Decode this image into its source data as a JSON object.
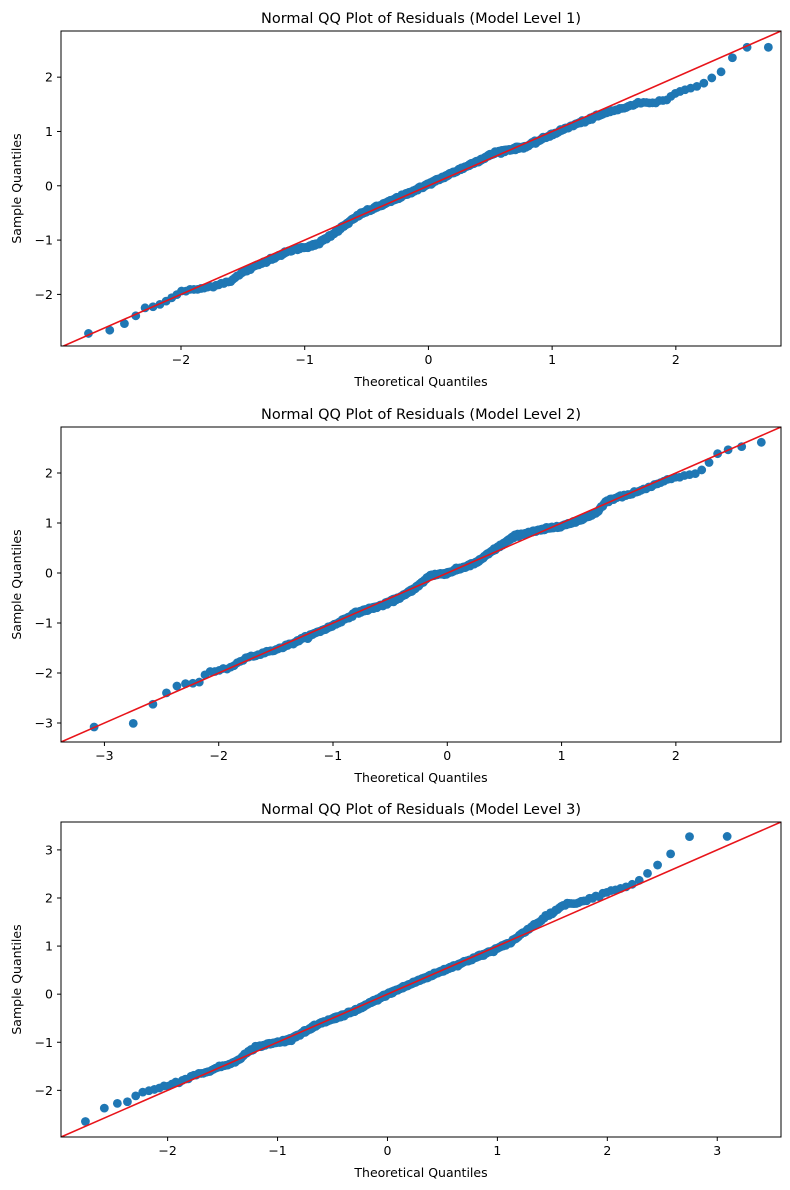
{
  "colors": {
    "points": "#1f77b4",
    "ref_line": "#e8141a",
    "axes": "#000000",
    "background": "#ffffff"
  },
  "chart_data": [
    {
      "type": "scatter",
      "title": "Normal QQ Plot of Residuals (Model Level 1)",
      "xlabel": "Theoretical Quantiles",
      "ylabel": "Sample Quantiles",
      "xlim": [
        -2.97,
        2.85
      ],
      "ylim": [
        -2.95,
        2.85
      ],
      "xticks": [
        -2,
        -1,
        0,
        1,
        2
      ],
      "yticks": [
        -2,
        -1,
        0,
        1,
        2
      ],
      "grid": false,
      "n_points": 500,
      "reference_line": {
        "slope": 1.0,
        "intercept": 0.0
      },
      "sample_quantile_curve": [
        [
          -2.78,
          -2.73
        ],
        [
          -2.55,
          -2.65
        ],
        [
          -2.4,
          -2.47
        ],
        [
          -2.3,
          -2.25
        ],
        [
          -2.2,
          -2.22
        ],
        [
          -2.1,
          -2.1
        ],
        [
          -2.0,
          -1.95
        ],
        [
          -1.8,
          -1.88
        ],
        [
          -1.6,
          -1.75
        ],
        [
          -1.5,
          -1.6
        ],
        [
          -1.3,
          -1.37
        ],
        [
          -1.1,
          -1.18
        ],
        [
          -0.9,
          -1.08
        ],
        [
          -0.75,
          -0.85
        ],
        [
          -0.55,
          -0.52
        ],
        [
          -0.3,
          -0.28
        ],
        [
          0.0,
          0.03
        ],
        [
          0.3,
          0.35
        ],
        [
          0.55,
          0.62
        ],
        [
          0.8,
          0.73
        ],
        [
          1.0,
          0.95
        ],
        [
          1.2,
          1.14
        ],
        [
          1.45,
          1.35
        ],
        [
          1.7,
          1.52
        ],
        [
          1.9,
          1.55
        ],
        [
          2.0,
          1.72
        ],
        [
          2.2,
          1.85
        ],
        [
          2.38,
          2.12
        ],
        [
          2.52,
          2.55
        ],
        [
          2.78,
          2.55
        ]
      ]
    },
    {
      "type": "scatter",
      "title": "Normal QQ Plot of Residuals (Model Level 2)",
      "xlabel": "Theoretical Quantiles",
      "ylabel": "Sample Quantiles",
      "xlim": [
        -3.38,
        2.92
      ],
      "ylim": [
        -3.38,
        2.92
      ],
      "xticks": [
        -3,
        -2,
        -1,
        0,
        1,
        2
      ],
      "yticks": [
        -3,
        -2,
        -1,
        0,
        1,
        2
      ],
      "grid": false,
      "n_points": 500,
      "reference_line": {
        "slope": 1.0,
        "intercept": 0.0
      },
      "sample_quantile_curve": [
        [
          -2.78,
          -3.08
        ],
        [
          -2.52,
          -2.5
        ],
        [
          -2.38,
          -2.27
        ],
        [
          -2.27,
          -2.2
        ],
        [
          -2.18,
          -2.21
        ],
        [
          -2.1,
          -1.98
        ],
        [
          -1.9,
          -1.9
        ],
        [
          -1.8,
          -1.72
        ],
        [
          -1.6,
          -1.6
        ],
        [
          -1.4,
          -1.45
        ],
        [
          -1.2,
          -1.25
        ],
        [
          -1.0,
          -1.05
        ],
        [
          -0.8,
          -0.8
        ],
        [
          -0.55,
          -0.63
        ],
        [
          -0.38,
          -0.45
        ],
        [
          -0.25,
          -0.25
        ],
        [
          -0.15,
          -0.05
        ],
        [
          0.0,
          0.0
        ],
        [
          0.25,
          0.2
        ],
        [
          0.4,
          0.45
        ],
        [
          0.6,
          0.75
        ],
        [
          0.9,
          0.9
        ],
        [
          1.1,
          1.0
        ],
        [
          1.3,
          1.2
        ],
        [
          1.4,
          1.45
        ],
        [
          1.6,
          1.58
        ],
        [
          1.8,
          1.75
        ],
        [
          2.0,
          1.92
        ],
        [
          2.2,
          2.0
        ],
        [
          2.38,
          2.42
        ],
        [
          2.52,
          2.5
        ],
        [
          2.78,
          2.63
        ]
      ]
    },
    {
      "type": "scatter",
      "title": "Normal QQ Plot of Residuals (Model Level 3)",
      "xlabel": "Theoretical Quantiles",
      "ylabel": "Sample Quantiles",
      "xlim": [
        -2.97,
        3.58
      ],
      "ylim": [
        -2.97,
        3.58
      ],
      "xticks": [
        -2,
        -1,
        0,
        1,
        2,
        3
      ],
      "yticks": [
        -2,
        -1,
        0,
        1,
        2,
        3
      ],
      "grid": false,
      "n_points": 500,
      "reference_line": {
        "slope": 1.0,
        "intercept": 0.0
      },
      "sample_quantile_curve": [
        [
          -2.78,
          -2.7
        ],
        [
          -2.52,
          -2.28
        ],
        [
          -2.38,
          -2.26
        ],
        [
          -2.25,
          -2.05
        ],
        [
          -2.1,
          -1.97
        ],
        [
          -1.9,
          -1.82
        ],
        [
          -1.7,
          -1.65
        ],
        [
          -1.4,
          -1.42
        ],
        [
          -1.2,
          -1.1
        ],
        [
          -0.9,
          -0.95
        ],
        [
          -0.6,
          -0.6
        ],
        [
          -0.3,
          -0.35
        ],
        [
          0.0,
          0.0
        ],
        [
          0.3,
          0.3
        ],
        [
          0.6,
          0.58
        ],
        [
          0.9,
          0.85
        ],
        [
          1.1,
          1.05
        ],
        [
          1.25,
          1.3
        ],
        [
          1.4,
          1.55
        ],
        [
          1.6,
          1.85
        ],
        [
          1.8,
          1.95
        ],
        [
          2.0,
          2.12
        ],
        [
          2.2,
          2.25
        ],
        [
          2.3,
          2.38
        ],
        [
          2.4,
          2.58
        ],
        [
          2.52,
          2.8
        ],
        [
          2.75,
          3.28
        ]
      ]
    }
  ]
}
